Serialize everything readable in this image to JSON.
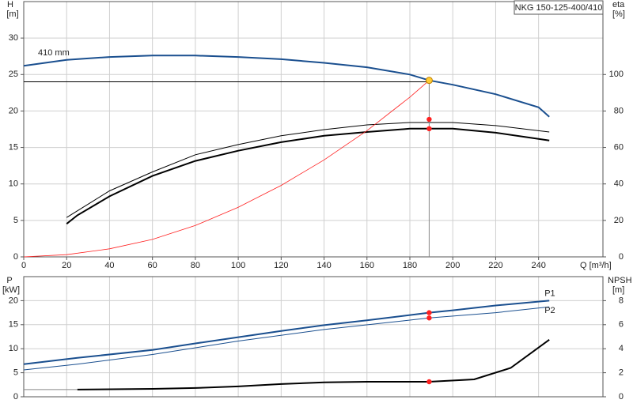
{
  "chart_data": [
    {
      "type": "line",
      "title": "NKG 150-125-400/410",
      "ylabel": "H",
      "yunit": "[m]",
      "y2label": "eta",
      "y2unit": "[%]",
      "xlabel": "Q [m³/h]",
      "annotation": "410 mm",
      "xlim": [
        0,
        270
      ],
      "xticks": [
        0,
        20,
        40,
        60,
        80,
        100,
        120,
        140,
        160,
        180,
        200,
        220,
        240
      ],
      "ylim": [
        0,
        35
      ],
      "yticks": [
        0,
        5,
        10,
        15,
        20,
        25,
        30
      ],
      "y2lim": [
        0,
        140
      ],
      "y2ticks": [
        0,
        20,
        40,
        60,
        80,
        100
      ],
      "grid": true,
      "series": [
        {
          "color": "#1a4f8f",
          "width": 2,
          "x": [
            0,
            20,
            40,
            60,
            80,
            100,
            120,
            140,
            160,
            180,
            189,
            200,
            220,
            240,
            245
          ],
          "values": [
            26.2,
            27.0,
            27.4,
            27.6,
            27.6,
            27.4,
            27.1,
            26.6,
            26.0,
            25.0,
            24.2,
            23.6,
            22.3,
            20.5,
            19.2
          ]
        },
        {
          "color": "#000000",
          "width": 1,
          "axis": "y2",
          "x": [
            20,
            40,
            60,
            80,
            100,
            120,
            140,
            160,
            180,
            190,
            200,
            220,
            245
          ],
          "values": [
            21.6,
            36.2,
            46.6,
            56,
            61.6,
            66.4,
            69.8,
            72.4,
            73.7,
            73.7,
            73.7,
            72,
            68.5
          ]
        },
        {
          "color": "#000000",
          "width": 2,
          "axis": "y2",
          "x": [
            20,
            25,
            40,
            60,
            80,
            100,
            120,
            140,
            160,
            180,
            200,
            220,
            240,
            245
          ],
          "values": [
            18.1,
            22.8,
            33.2,
            44.4,
            52.6,
            58.2,
            62.9,
            66.4,
            68.5,
            70.3,
            70.3,
            68.1,
            64.7,
            63.8
          ]
        },
        {
          "color": "#ff2020",
          "width": 0.8,
          "x": [
            0,
            20,
            40,
            60,
            80,
            100,
            120,
            140,
            160,
            180,
            189
          ],
          "values": [
            0,
            0.3,
            1.1,
            2.4,
            4.3,
            6.8,
            9.8,
            13.3,
            17.3,
            21.9,
            24.2
          ]
        },
        {
          "color": "#000000",
          "width": 1,
          "x": [
            0,
            189
          ],
          "values": [
            24,
            24
          ]
        },
        {
          "color": "#888888",
          "width": 1,
          "x": [
            189,
            189
          ],
          "values": [
            0,
            24
          ]
        }
      ],
      "points": [
        {
          "x": 189,
          "y": 24.2,
          "color": "#ffcc33"
        },
        {
          "x": 189,
          "y": 75.4,
          "axis": "y2",
          "color": "#ff2020"
        },
        {
          "x": 189,
          "y": 70.3,
          "axis": "y2",
          "color": "#ff2020"
        }
      ]
    },
    {
      "type": "line",
      "ylabel": "P",
      "yunit": "[kW]",
      "y2label": "NPSH",
      "y2unit": "[m]",
      "xlim": [
        0,
        270
      ],
      "ylim": [
        0,
        25
      ],
      "yticks": [
        0,
        5,
        10,
        15,
        20
      ],
      "y2lim": [
        0,
        10
      ],
      "y2ticks": [
        0,
        2,
        4,
        6,
        8
      ],
      "grid": true,
      "series": [
        {
          "name": "P1",
          "color": "#1a4f8f",
          "width": 2,
          "x": [
            0,
            25,
            60,
            80,
            100,
            120,
            140,
            160,
            189,
            200,
            220,
            245
          ],
          "values": [
            6.8,
            8.1,
            9.75,
            11.1,
            12.4,
            13.7,
            14.9,
            15.9,
            17.5,
            18,
            19,
            20
          ]
        },
        {
          "name": "P2",
          "color": "#1a4f8f",
          "width": 1,
          "x": [
            0,
            25,
            60,
            100,
            140,
            189,
            220,
            245
          ],
          "values": [
            5.6,
            6.8,
            8.8,
            11.6,
            14,
            16.4,
            17.5,
            18.7
          ]
        },
        {
          "color": "#888888",
          "width": 1,
          "axis": "y2",
          "x": [
            0,
            25
          ],
          "values": [
            0.6,
            0.6
          ]
        },
        {
          "color": "#000000",
          "width": 2,
          "axis": "y2",
          "x": [
            25,
            60,
            80,
            100,
            120,
            140,
            160,
            189,
            210,
            227,
            245
          ],
          "values": [
            0.6,
            0.66,
            0.73,
            0.86,
            1.06,
            1.2,
            1.25,
            1.25,
            1.45,
            2.4,
            4.75
          ]
        }
      ],
      "points": [
        {
          "x": 189,
          "y": 17.5,
          "color": "#ff2020"
        },
        {
          "x": 189,
          "y": 16.4,
          "color": "#ff2020"
        },
        {
          "x": 189,
          "y": 1.25,
          "axis": "y2",
          "color": "#ff2020"
        }
      ]
    }
  ]
}
